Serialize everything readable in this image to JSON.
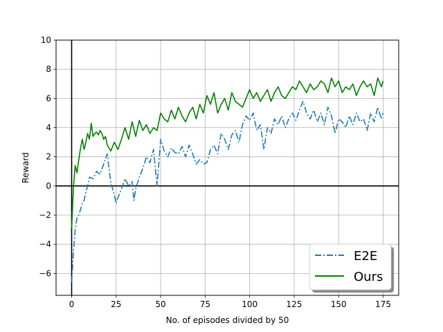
{
  "chart_data": {
    "type": "line",
    "title": "",
    "xlabel": "No. of episodes divided by 50",
    "ylabel": "Reward",
    "xlim": [
      -8.75,
      183.75
    ],
    "ylim": [
      -7.5,
      10
    ],
    "xticks": [
      0,
      25,
      50,
      75,
      100,
      125,
      150,
      175
    ],
    "yticks": [
      -6,
      -4,
      -2,
      0,
      2,
      4,
      6,
      8,
      10
    ],
    "grid": true,
    "legend": "lower-right",
    "reference_lines": {
      "x": 0,
      "y": 0
    },
    "series": [
      {
        "name": "E2E",
        "color": "#1f77b4",
        "linestyle": "dashdot",
        "x": [
          0,
          1,
          2,
          3,
          4,
          5,
          6,
          7,
          8,
          9,
          10,
          12,
          14,
          16,
          18,
          20,
          22,
          24,
          25,
          26,
          28,
          30,
          32,
          34,
          35,
          36,
          38,
          40,
          42,
          44,
          46,
          48,
          50,
          52,
          54,
          56,
          58,
          60,
          62,
          64,
          66,
          68,
          70,
          72,
          74,
          76,
          78,
          80,
          82,
          84,
          86,
          88,
          90,
          92,
          94,
          96,
          98,
          100,
          102,
          104,
          106,
          108,
          110,
          112,
          114,
          116,
          118,
          120,
          122,
          124,
          126,
          128,
          130,
          132,
          134,
          136,
          138,
          140,
          142,
          144,
          146,
          148,
          150,
          152,
          154,
          156,
          158,
          160,
          162,
          164,
          166,
          168,
          170,
          172,
          174,
          175
        ],
        "y": [
          -6.6,
          -4.5,
          -3.0,
          -2.2,
          -2.0,
          -1.6,
          -1.2,
          -1.0,
          -0.4,
          0.0,
          0.6,
          0.5,
          1.0,
          0.8,
          1.5,
          2.2,
          0.2,
          -0.6,
          -1.2,
          -0.8,
          -0.2,
          0.5,
          0.0,
          0.3,
          -1.0,
          -0.2,
          0.6,
          1.2,
          2.0,
          1.6,
          2.5,
          0.0,
          3.2,
          2.4,
          2.0,
          2.6,
          2.3,
          2.2,
          2.7,
          2.0,
          2.8,
          2.2,
          1.5,
          1.8,
          1.5,
          1.6,
          2.5,
          2.8,
          2.2,
          3.6,
          3.2,
          2.5,
          3.5,
          3.8,
          3.0,
          4.2,
          4.8,
          4.5,
          5.0,
          3.8,
          4.2,
          2.5,
          4.0,
          3.6,
          4.6,
          4.2,
          4.8,
          4.0,
          4.6,
          5.0,
          4.5,
          5.2,
          5.8,
          5.0,
          4.6,
          5.2,
          4.4,
          5.0,
          4.2,
          5.4,
          4.8,
          3.6,
          4.6,
          4.4,
          4.0,
          4.8,
          4.2,
          5.0,
          4.4,
          4.6,
          3.8,
          5.0,
          4.4,
          5.4,
          4.6,
          5.0
        ]
      },
      {
        "name": "Ours",
        "color": "#008000",
        "linestyle": "solid",
        "x": [
          0,
          1,
          2,
          3,
          4,
          5,
          6,
          7,
          8,
          9,
          10,
          11,
          12,
          13,
          14,
          15,
          16,
          17,
          18,
          19,
          20,
          22,
          24,
          26,
          28,
          30,
          32,
          34,
          36,
          38,
          40,
          42,
          44,
          46,
          48,
          50,
          52,
          54,
          56,
          58,
          60,
          62,
          64,
          66,
          68,
          70,
          72,
          74,
          76,
          78,
          80,
          82,
          84,
          86,
          88,
          90,
          92,
          94,
          96,
          98,
          100,
          102,
          104,
          106,
          108,
          110,
          112,
          114,
          116,
          118,
          120,
          122,
          124,
          126,
          128,
          130,
          132,
          134,
          136,
          138,
          140,
          142,
          144,
          146,
          148,
          150,
          152,
          154,
          156,
          158,
          160,
          162,
          164,
          166,
          168,
          170,
          172,
          174,
          175
        ],
        "y": [
          -2.9,
          -0.1,
          1.4,
          0.9,
          1.8,
          2.6,
          3.2,
          2.5,
          3.0,
          3.6,
          3.2,
          4.3,
          3.4,
          3.6,
          3.7,
          3.5,
          3.8,
          3.6,
          3.2,
          3.4,
          2.8,
          2.4,
          3.0,
          2.5,
          3.2,
          4.0,
          3.2,
          4.4,
          3.4,
          4.5,
          3.8,
          4.2,
          3.6,
          4.0,
          3.8,
          5.0,
          4.6,
          4.4,
          5.2,
          4.6,
          5.4,
          4.8,
          4.4,
          5.0,
          5.4,
          4.6,
          5.6,
          5.0,
          6.2,
          5.6,
          6.4,
          5.0,
          5.6,
          6.0,
          5.2,
          6.4,
          5.8,
          5.6,
          5.4,
          6.0,
          6.6,
          6.0,
          6.4,
          5.8,
          6.2,
          6.6,
          5.8,
          6.4,
          6.8,
          6.2,
          6.0,
          6.4,
          6.8,
          6.6,
          7.2,
          6.8,
          6.4,
          7.0,
          6.6,
          6.8,
          7.2,
          7.0,
          6.4,
          7.4,
          6.8,
          7.2,
          6.4,
          6.8,
          6.6,
          7.0,
          6.2,
          6.8,
          7.2,
          6.8,
          7.0,
          6.2,
          7.4,
          6.8,
          7.2
        ]
      }
    ]
  }
}
